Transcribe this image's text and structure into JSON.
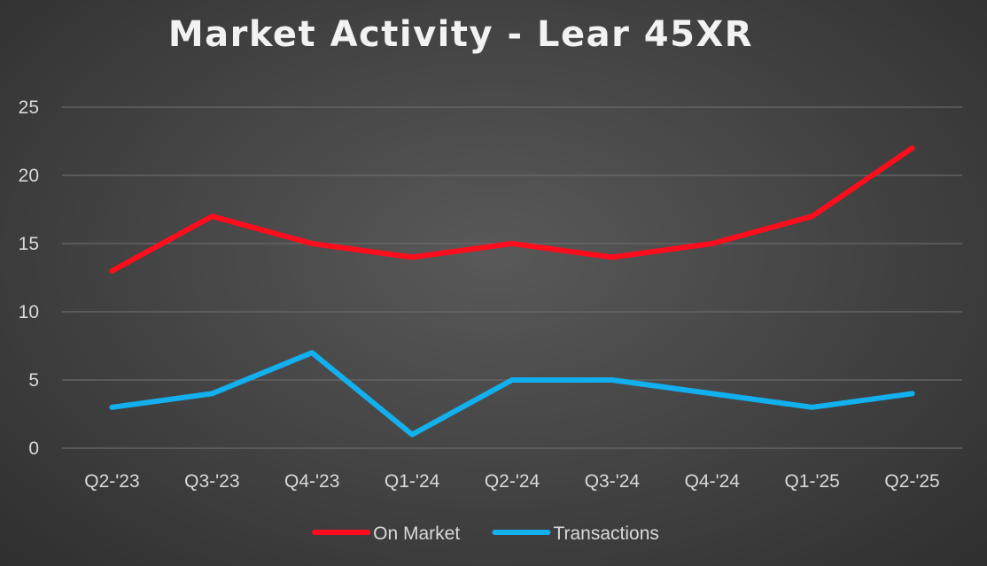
{
  "chart_data": {
    "type": "line",
    "title": "Market Activity - Lear 45XR",
    "xlabel": "",
    "ylabel": "",
    "categories": [
      "Q2-'23",
      "Q3-'23",
      "Q4-'23",
      "Q1-'24",
      "Q2-'24",
      "Q3-'24",
      "Q4-'24",
      "Q1-'25",
      "Q2-'25"
    ],
    "ylim": [
      0,
      25
    ],
    "yticks": [
      0,
      5,
      10,
      15,
      20,
      25
    ],
    "grid": true,
    "legend_position": "bottom",
    "series": [
      {
        "name": "On Market",
        "color": "#ff0d1c",
        "values": [
          13,
          17,
          15,
          14,
          15,
          14,
          15,
          17,
          22
        ]
      },
      {
        "name": "Transactions",
        "color": "#12b0ee",
        "values": [
          3,
          4,
          7,
          1,
          5,
          5,
          4,
          3,
          4
        ]
      }
    ]
  }
}
